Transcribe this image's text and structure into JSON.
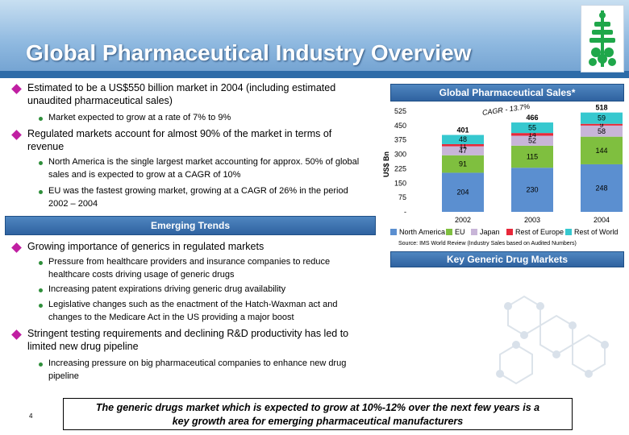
{
  "header": {
    "title": "Global Pharmaceutical Industry Overview"
  },
  "bullets": {
    "b1": "Estimated to be a US$550 billion market in 2004 (including estimated unaudited pharmaceutical sales)",
    "b1_sub1": "Market expected to grow at a rate of 7% to 9%",
    "b2": "Regulated markets account for almost 90% of the market in terms of revenue",
    "b2_sub1": "North America is the single largest market accounting for approx. 50% of global sales and is expected to grow at a CAGR of 10%",
    "b2_sub2": "EU was the fastest growing market, growing at a CAGR of 26% in the period 2002 – 2004"
  },
  "emerging": {
    "title": "Emerging Trends",
    "b1": "Growing importance of generics in regulated markets",
    "b1_sub1": "Pressure from healthcare providers and insurance companies to reduce healthcare costs driving usage of generic drugs",
    "b1_sub2": "Increasing patent expirations driving generic drug availability",
    "b1_sub3": "Legislative changes such as the enactment of the Hatch-Waxman act and changes to the Medicare Act in the US providing a major boost",
    "b2": "Stringent testing requirements and declining R&D productivity has led to limited new drug pipeline",
    "b2_sub1": "Increasing pressure on big pharmaceutical companies to  enhance new drug pipeline"
  },
  "chart_header": "Global Pharmaceutical Sales*",
  "key_generic": "Key Generic Drug Markets",
  "source": "Source: IMS World Review (Industry Sales based on Audited Numbers)",
  "footer": {
    "line1": "The generic drugs market which is expected to grow at 10%-12% over the next few years is a",
    "line2": "key growth area for emerging pharmaceutical manufacturers"
  },
  "page_number": "4",
  "colors": {
    "north_america": "#5b8fd0",
    "eu": "#7fbf3f",
    "japan": "#c8b5d8",
    "rest_of_europe": "#e8283a",
    "rest_of_world": "#36c8cf"
  },
  "chart_data": {
    "type": "bar",
    "stacked": true,
    "title": "Global Pharmaceutical Sales*",
    "ylabel": "US$ Bn",
    "xlabel": "",
    "categories": [
      "2002",
      "2003",
      "2004"
    ],
    "ylim": [
      0,
      525
    ],
    "yticks": [
      "525",
      "450",
      "375",
      "300",
      "225",
      "150",
      "75",
      "-"
    ],
    "series": [
      {
        "name": "North America",
        "values": [
          204,
          230,
          248
        ]
      },
      {
        "name": "EU",
        "values": [
          91,
          115,
          144
        ]
      },
      {
        "name": "Japan",
        "values": [
          47,
          52,
          58
        ]
      },
      {
        "name": "Rest of Europe",
        "values": [
          11,
          14,
          9
        ]
      },
      {
        "name": "Rest of World",
        "values": [
          48,
          55,
          59
        ]
      }
    ],
    "totals": [
      "401",
      "466",
      "518"
    ],
    "segment_labels": [
      [
        "204",
        "91",
        "47",
        "11",
        "48"
      ],
      [
        "230",
        "115",
        "52",
        "14",
        "55"
      ],
      [
        "248",
        "144",
        "58",
        "9",
        "59"
      ]
    ],
    "annotation": "CAGR - 13.7%"
  }
}
